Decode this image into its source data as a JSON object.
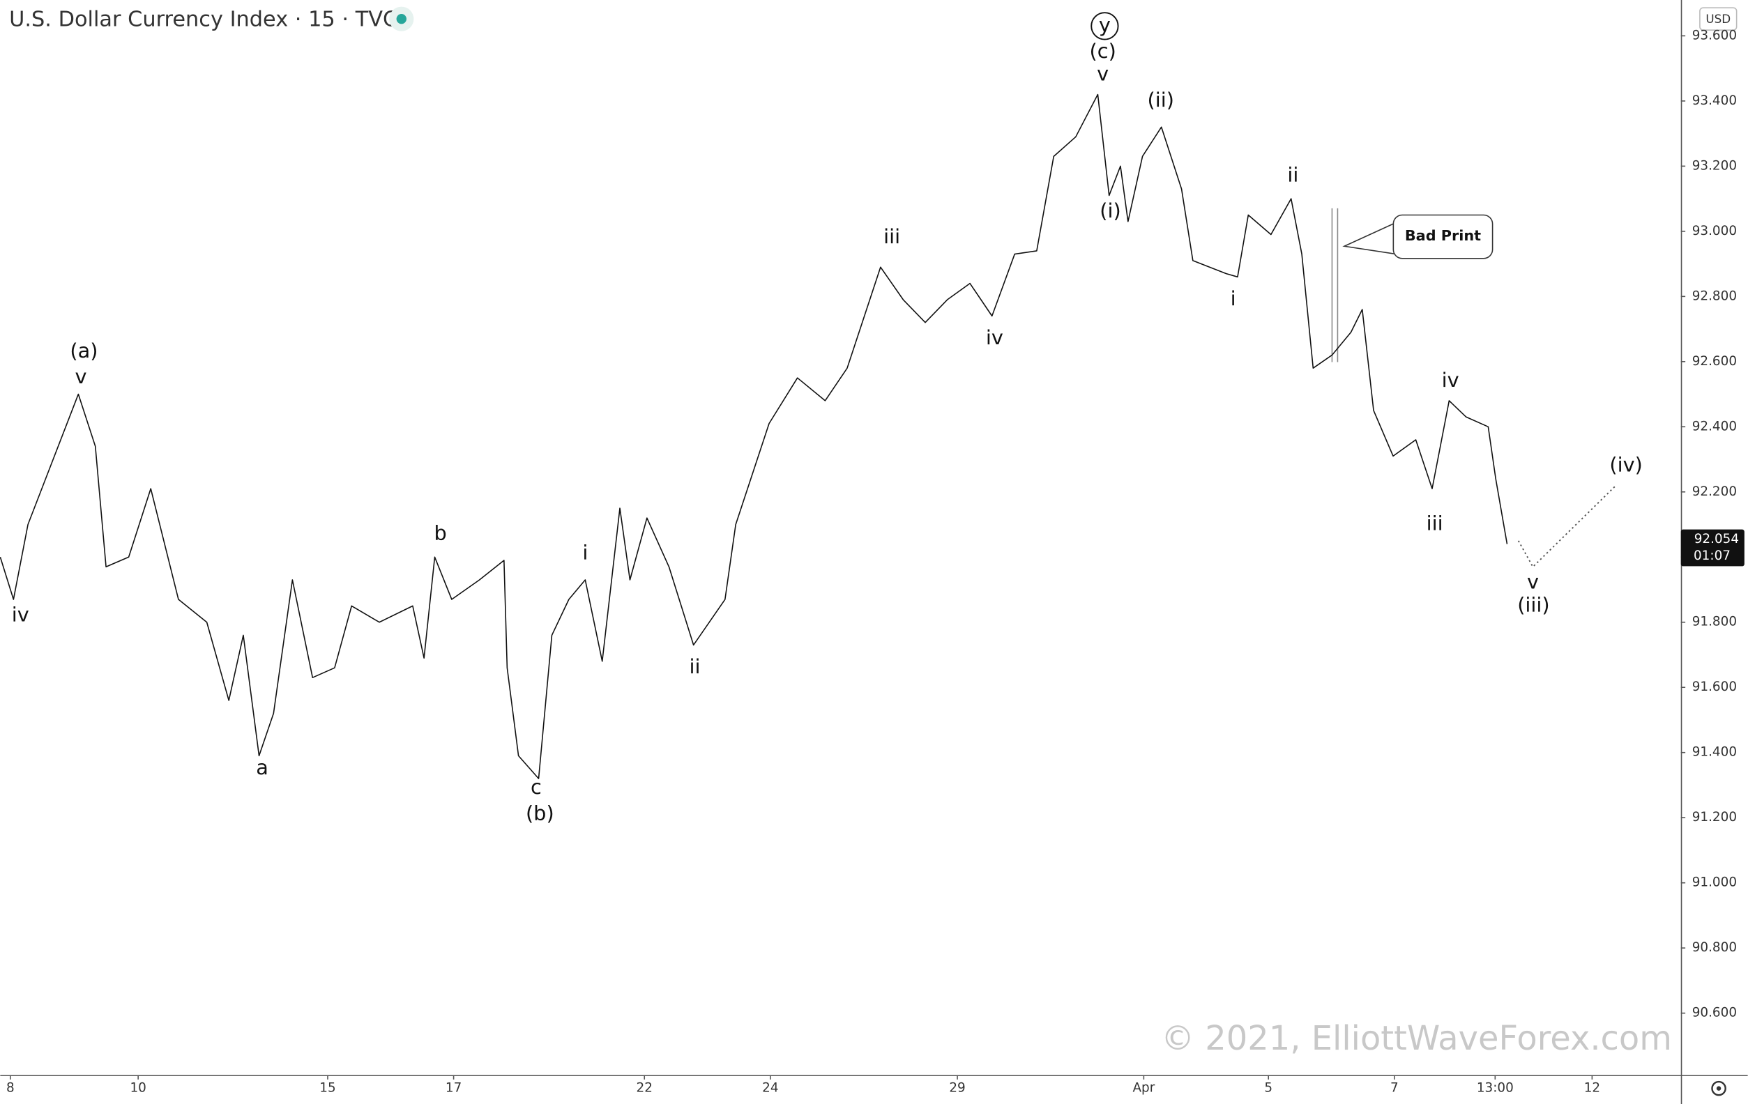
{
  "chart_data": {
    "type": "line",
    "title": "U.S. Dollar Currency Index · 15 · TVC",
    "currency": "USD",
    "watermark": "© 2021, ElliottWaveForex.com",
    "last_price": 92.054,
    "countdown": "01:07",
    "callout": "Bad Print",
    "color": "#111111",
    "xlim": [
      -0.16,
      26.53
    ],
    "ylim": [
      90.41,
      93.71
    ],
    "xticks": [
      {
        "value": 0,
        "label": "8"
      },
      {
        "value": 2.03,
        "label": "10"
      },
      {
        "value": 5.04,
        "label": "15"
      },
      {
        "value": 7.04,
        "label": "17"
      },
      {
        "value": 10.07,
        "label": "22"
      },
      {
        "value": 12.07,
        "label": "24"
      },
      {
        "value": 15.04,
        "label": "29"
      },
      {
        "value": 18.0,
        "label": "Apr"
      },
      {
        "value": 19.98,
        "label": "5"
      },
      {
        "value": 21.98,
        "label": "7"
      },
      {
        "value": 23.58,
        "label": "13:00"
      },
      {
        "value": 25.12,
        "label": "12"
      }
    ],
    "yticks": [
      {
        "value": 90.6,
        "label": "90.600"
      },
      {
        "value": 90.8,
        "label": "90.800"
      },
      {
        "value": 91.0,
        "label": "91.000"
      },
      {
        "value": 91.2,
        "label": "91.200"
      },
      {
        "value": 91.4,
        "label": "91.400"
      },
      {
        "value": 91.6,
        "label": "91.600"
      },
      {
        "value": 91.8,
        "label": "91.800"
      },
      {
        "value": 92.0,
        "label": "92.000"
      },
      {
        "value": 92.2,
        "label": "92.200"
      },
      {
        "value": 92.4,
        "label": "92.400"
      },
      {
        "value": 92.6,
        "label": "92.600"
      },
      {
        "value": 92.8,
        "label": "92.800"
      },
      {
        "value": 93.0,
        "label": "93.000"
      },
      {
        "value": 93.2,
        "label": "93.200"
      },
      {
        "value": 93.4,
        "label": "93.400"
      },
      {
        "value": 93.6,
        "label": "93.600"
      }
    ],
    "x": [
      -0.16,
      0.05,
      0.28,
      0.64,
      1.08,
      1.35,
      1.52,
      1.88,
      2.23,
      2.67,
      3.12,
      3.47,
      3.7,
      3.95,
      4.18,
      4.48,
      4.8,
      5.15,
      5.42,
      5.86,
      6.39,
      6.57,
      6.74,
      7.01,
      7.45,
      7.84,
      7.89,
      8.07,
      8.39,
      8.6,
      8.87,
      9.13,
      9.4,
      9.68,
      9.84,
      10.11,
      10.46,
      10.85,
      11.35,
      11.52,
      12.05,
      12.5,
      12.94,
      13.29,
      13.82,
      14.18,
      14.53,
      14.88,
      15.24,
      15.59,
      15.95,
      16.3,
      16.57,
      16.92,
      17.27,
      17.45,
      17.63,
      17.75,
      17.98,
      18.28,
      18.6,
      18.78,
      19.31,
      19.49,
      19.66,
      20.02,
      20.34,
      20.51,
      20.69,
      20.99,
      21.29,
      21.47,
      21.65,
      21.96,
      22.32,
      22.58,
      22.85,
      23.12,
      23.47,
      23.59,
      23.77
    ],
    "values": [
      92.0,
      91.87,
      92.1,
      92.28,
      92.5,
      92.34,
      91.97,
      92.0,
      92.21,
      91.87,
      91.8,
      91.56,
      91.76,
      91.39,
      91.52,
      91.93,
      91.63,
      91.66,
      91.85,
      91.8,
      91.85,
      91.69,
      92.0,
      91.87,
      91.93,
      91.99,
      91.66,
      91.39,
      91.32,
      91.76,
      91.87,
      91.93,
      91.68,
      92.15,
      91.93,
      92.12,
      91.97,
      91.73,
      91.87,
      92.1,
      92.41,
      92.55,
      92.48,
      92.58,
      92.89,
      92.79,
      92.72,
      92.79,
      92.84,
      92.74,
      92.93,
      92.94,
      93.23,
      93.29,
      93.42,
      93.11,
      93.2,
      93.03,
      93.23,
      93.32,
      93.13,
      92.91,
      92.87,
      92.86,
      93.05,
      92.99,
      93.1,
      92.93,
      92.58,
      92.62,
      92.69,
      92.76,
      92.45,
      92.31,
      92.36,
      92.21,
      92.48,
      92.43,
      92.4,
      92.24,
      92.04
    ],
    "projection": {
      "x": [
        23.95,
        24.18,
        25.5
      ],
      "values": [
        92.05,
        91.97,
        92.22
      ]
    },
    "annotations": [
      {
        "text": "iv",
        "x": 0.16,
        "y": 91.82
      },
      {
        "text": "(a)",
        "x": 1.17,
        "y": 92.63
      },
      {
        "text": "v",
        "x": 1.12,
        "y": 92.55
      },
      {
        "text": "a",
        "x": 4.0,
        "y": 91.35
      },
      {
        "text": "b",
        "x": 6.83,
        "y": 92.07
      },
      {
        "text": "c",
        "x": 8.35,
        "y": 91.29
      },
      {
        "text": "(b)",
        "x": 8.41,
        "y": 91.21
      },
      {
        "text": "i",
        "x": 9.13,
        "y": 92.01
      },
      {
        "text": "ii",
        "x": 10.87,
        "y": 91.66
      },
      {
        "text": "iii",
        "x": 14.0,
        "y": 92.98
      },
      {
        "text": "iv",
        "x": 15.63,
        "y": 92.67
      },
      {
        "text": "y",
        "x": 17.38,
        "y": 93.63,
        "circled": true
      },
      {
        "text": "(c)",
        "x": 17.35,
        "y": 93.55
      },
      {
        "text": "v",
        "x": 17.35,
        "y": 93.48
      },
      {
        "text": "(i)",
        "x": 17.47,
        "y": 93.06
      },
      {
        "text": "(ii)",
        "x": 18.27,
        "y": 93.4
      },
      {
        "text": "i",
        "x": 19.42,
        "y": 92.79
      },
      {
        "text": "ii",
        "x": 20.37,
        "y": 93.17
      },
      {
        "text": "iv",
        "x": 22.87,
        "y": 92.54
      },
      {
        "text": "iii",
        "x": 22.62,
        "y": 92.1
      },
      {
        "text": "v",
        "x": 24.18,
        "y": 91.92
      },
      {
        "text": "(iii)",
        "x": 24.19,
        "y": 91.85
      },
      {
        "text": "(iv)",
        "x": 25.66,
        "y": 92.28
      }
    ]
  }
}
